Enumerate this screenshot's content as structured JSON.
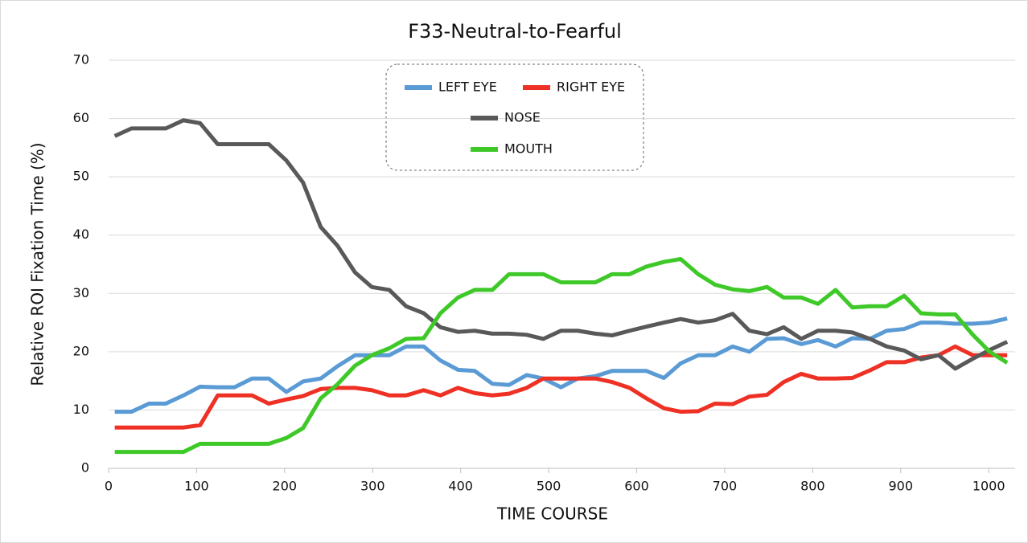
{
  "chart_data": {
    "type": "line",
    "title": "F33-Neutral-to-Fearful",
    "x_label": "TIME  COURSE",
    "y_label": "Relative  ROI  Fixation  Time  (%)",
    "x": [
      7,
      26,
      46,
      65,
      85,
      104,
      124,
      143,
      163,
      182,
      202,
      221,
      241,
      260,
      280,
      299,
      319,
      338,
      358,
      377,
      397,
      416,
      436,
      455,
      475,
      494,
      514,
      533,
      553,
      572,
      592,
      611,
      631,
      650,
      670,
      689,
      709,
      728,
      748,
      767,
      787,
      806,
      826,
      845,
      865,
      884,
      904,
      923,
      943,
      962,
      982,
      1001,
      1021
    ],
    "series": [
      {
        "name": "LEFT EYE",
        "color": "#5b9bd5",
        "values": [
          9.7,
          9.7,
          11.1,
          11.1,
          12.5,
          14,
          13.9,
          13.9,
          15.4,
          15.4,
          13.1,
          14.9,
          15.4,
          17.5,
          19.4,
          19.4,
          19.4,
          20.9,
          20.9,
          18.5,
          16.9,
          16.7,
          14.5,
          14.3,
          16,
          15.4,
          13.9,
          15.4,
          15.8,
          16.7,
          16.7,
          16.7,
          15.5,
          18,
          19.4,
          19.4,
          20.9,
          20,
          22.2,
          22.3,
          21.3,
          22,
          20.9,
          22.3,
          22.2,
          23.6,
          23.9,
          25,
          25,
          24.8,
          24.8,
          25,
          25.7
        ]
      },
      {
        "name": "RIGHT EYE",
        "color": "#ee3124",
        "values": [
          7,
          7,
          7,
          7,
          7,
          7.4,
          12.5,
          12.5,
          12.5,
          11.1,
          11.8,
          12.4,
          13.6,
          13.8,
          13.8,
          13.4,
          12.5,
          12.5,
          13.4,
          12.5,
          13.8,
          12.9,
          12.5,
          12.8,
          13.8,
          15.4,
          15.4,
          15.4,
          15.4,
          14.8,
          13.8,
          12,
          10.3,
          9.7,
          9.8,
          11.1,
          11,
          12.3,
          12.6,
          14.8,
          16.2,
          15.4,
          15.4,
          15.5,
          16.8,
          18.2,
          18.2,
          19,
          19.4,
          20.9,
          19.4,
          19.4,
          19.4
        ]
      },
      {
        "name": "NOSE",
        "color": "#595959",
        "values": [
          57,
          58.3,
          58.3,
          58.3,
          59.7,
          59.2,
          55.6,
          55.6,
          55.6,
          55.6,
          52.8,
          49,
          41.4,
          38.2,
          33.6,
          31.1,
          30.6,
          27.8,
          26.6,
          24.2,
          23.4,
          23.6,
          23.1,
          23.1,
          22.9,
          22.2,
          23.6,
          23.6,
          23.1,
          22.8,
          23.6,
          24.3,
          25,
          25.6,
          25,
          25.4,
          26.5,
          23.6,
          23,
          24.2,
          22.2,
          23.6,
          23.6,
          23.3,
          22.2,
          20.9,
          20.2,
          18.7,
          19.4,
          17.1,
          18.8,
          20.3,
          21.7
        ]
      },
      {
        "name": "MOUTH",
        "color": "#3ec928",
        "values": [
          2.8,
          2.8,
          2.8,
          2.8,
          2.8,
          4.2,
          4.2,
          4.2,
          4.2,
          4.2,
          5.2,
          6.9,
          12,
          14.4,
          17.6,
          19.4,
          20.6,
          22.2,
          22.3,
          26.6,
          29.3,
          30.6,
          30.6,
          33.3,
          33.3,
          33.3,
          31.9,
          31.9,
          31.9,
          33.3,
          33.3,
          34.6,
          35.4,
          35.9,
          33.3,
          31.5,
          30.7,
          30.4,
          31.1,
          29.3,
          29.3,
          28.2,
          30.6,
          27.6,
          27.8,
          27.8,
          29.6,
          26.6,
          26.4,
          26.4,
          22.9,
          20,
          18.1
        ]
      }
    ],
    "xlim": [
      0,
      1030
    ],
    "xticks": [
      0,
      100,
      200,
      300,
      400,
      500,
      600,
      700,
      800,
      900,
      1000
    ],
    "ylim": [
      0,
      70
    ],
    "yticks": [
      0,
      10,
      20,
      30,
      40,
      50,
      60,
      70
    ],
    "grid": true,
    "legend": "top"
  }
}
